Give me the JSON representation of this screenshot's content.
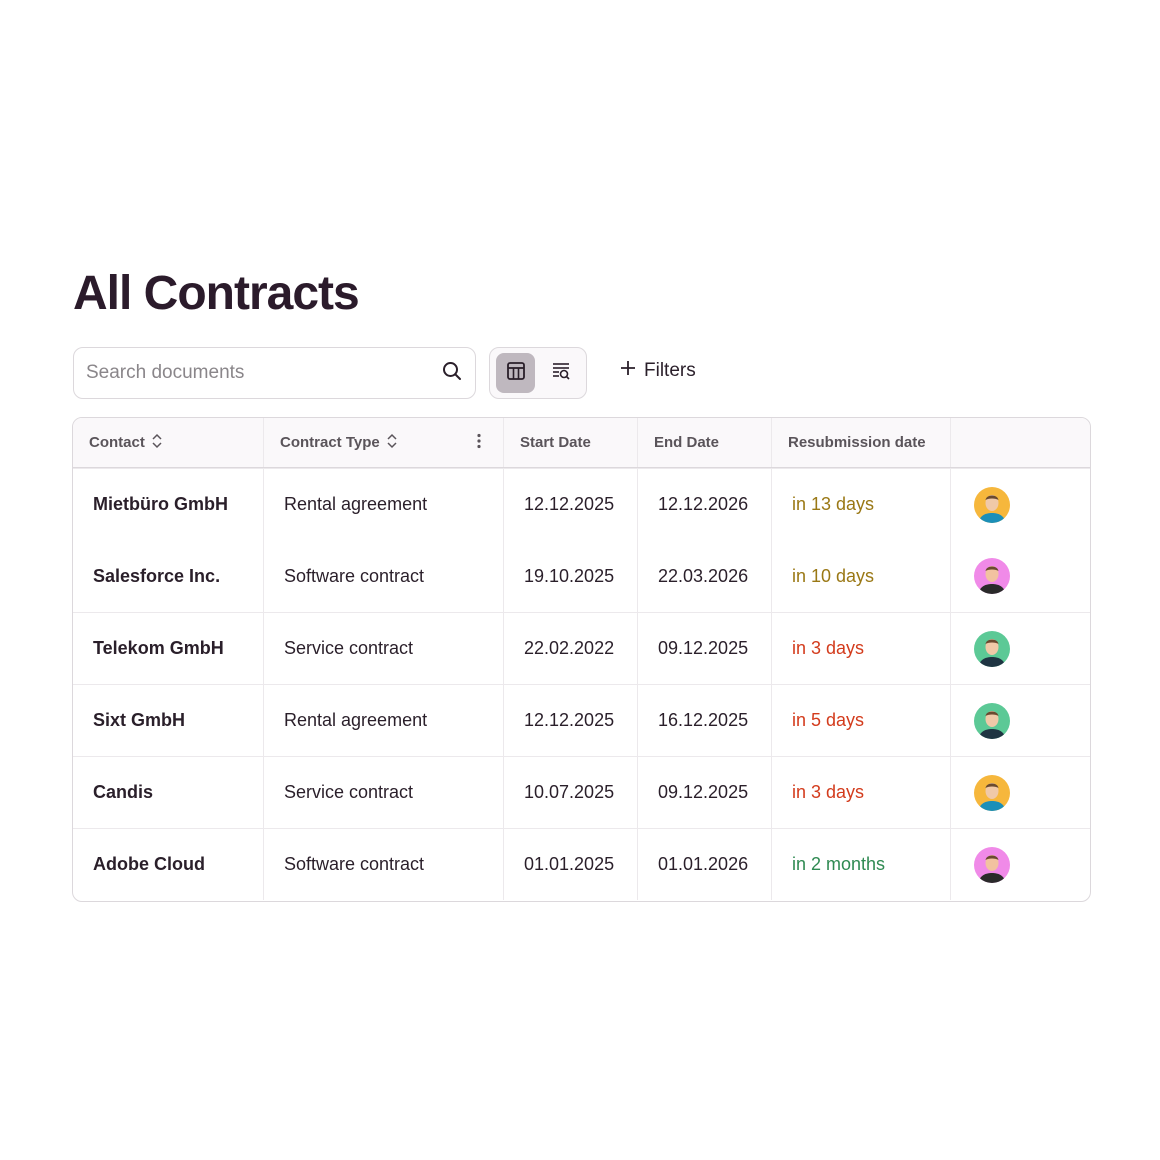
{
  "title": "All Contracts",
  "search": {
    "placeholder": "Search documents",
    "value": ""
  },
  "view_toggle": {
    "active": "table-view",
    "options": [
      "table-view",
      "list-search-view"
    ]
  },
  "filters_label": "Filters",
  "columns": [
    "Contact",
    "Contract Type",
    "Start Date",
    "End Date",
    "Resubmission date",
    ""
  ],
  "colors": {
    "soon": "#9a7815",
    "urgent": "#d33b1c",
    "later": "#2f8a52"
  },
  "rows": [
    {
      "contact": "Mietbüro GmbH",
      "type": "Rental agreement",
      "start": "12.12.2025",
      "end": "12.12.2026",
      "resub": "in 13 days",
      "status": "soon",
      "avatar": "orange"
    },
    {
      "contact": "Salesforce Inc.",
      "type": "Software contract",
      "start": "19.10.2025",
      "end": "22.03.2026",
      "resub": "in 10 days",
      "status": "soon",
      "avatar": "pink"
    },
    {
      "contact": "Telekom GmbH",
      "type": "Service contract",
      "start": "22.02.2022",
      "end": "09.12.2025",
      "resub": "in 3 days",
      "status": "urgent",
      "avatar": "green"
    },
    {
      "contact": "Sixt GmbH",
      "type": "Rental agreement",
      "start": "12.12.2025",
      "end": "16.12.2025",
      "resub": "in 5 days",
      "status": "urgent",
      "avatar": "green"
    },
    {
      "contact": "Candis",
      "type": "Service contract",
      "start": "10.07.2025",
      "end": "09.12.2025",
      "resub": "in 3 days",
      "status": "urgent",
      "avatar": "orange"
    },
    {
      "contact": "Adobe Cloud",
      "type": "Software contract",
      "start": "01.01.2025",
      "end": "01.01.2026",
      "resub": "in 2 months",
      "status": "later",
      "avatar": "pink"
    }
  ]
}
